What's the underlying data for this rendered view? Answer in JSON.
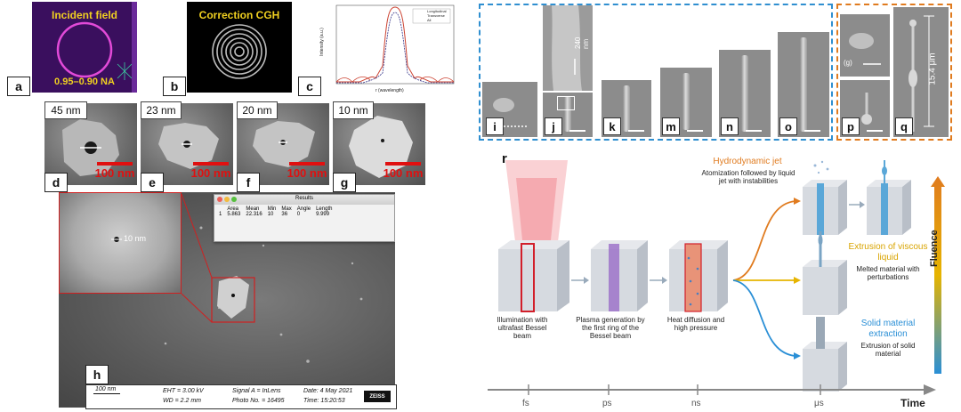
{
  "panel_a": {
    "title": "Incident field",
    "na": "0.95–0.90 NA",
    "label": "a"
  },
  "panel_b": {
    "title": "Correction CGH",
    "label": "b"
  },
  "panel_c": {
    "label": "c",
    "ylabel": "Intensity (a.u.)",
    "xlabel": "r (wavelength)",
    "legend": [
      "Longitudinal",
      "Transverse",
      "All"
    ],
    "xticks": [
      "-2",
      "-1",
      "0",
      "1",
      "2"
    ]
  },
  "sem_row": [
    {
      "size": "45 nm",
      "scale": "100 nm",
      "label": "d"
    },
    {
      "size": "23 nm",
      "scale": "100 nm",
      "label": "e"
    },
    {
      "size": "20 nm",
      "scale": "100 nm",
      "label": "f"
    },
    {
      "size": "10 nm",
      "scale": "100 nm",
      "label": "g"
    }
  ],
  "panel_h": {
    "label": "h",
    "zoom_label": "10 nm",
    "results": {
      "title": "Results",
      "headers": [
        "",
        "Area",
        "Mean",
        "Min",
        "Max",
        "Angle",
        "Length"
      ],
      "row": [
        "1",
        "5.863",
        "22.316",
        "10",
        "36",
        "0",
        "9.999"
      ]
    },
    "footer": {
      "scale": "100 nm",
      "eht": "EHT = 3.00 kV",
      "wd": "WD = 2.2 mm",
      "signal": "Signal A = InLens",
      "photo": "Photo No. = 16495",
      "date": "Date: 4 May 2021",
      "time": "Time: 15:20:53",
      "brand": "ZEISS"
    }
  },
  "pillars": [
    {
      "label": "i"
    },
    {
      "label": "j",
      "zoom": "240 nm"
    },
    {
      "label": "k"
    },
    {
      "label": "m"
    },
    {
      "label": "n"
    },
    {
      "label": "o"
    },
    {
      "label": "p",
      "inset": "(g)"
    },
    {
      "label": "q",
      "height": "15.4 μm"
    }
  ],
  "panel_r": {
    "label": "r",
    "stage1": "Illumination with ultrafast Bessel beam",
    "stage2": "Plasma generation by the first ring of the Bessel beam",
    "stage3": "Heat diffusion and high pressure",
    "out1_title": "Hydrodynamic jet",
    "out1_desc": "Atomization followed by liquid jet with instabilities",
    "out2_title": "Extrusion of viscous liquid",
    "out2_desc": "Melted material with perturbations",
    "out3_title": "Solid material extraction",
    "out3_desc": "Extrusion of solid material",
    "fluence": "Fluence",
    "time_axis": {
      "title": "Time",
      "ticks": [
        "fs",
        "ps",
        "ns",
        "μs"
      ]
    },
    "colors": {
      "jet": "#e07b1f",
      "viscous": "#e6b400",
      "solid": "#2a8fd6"
    }
  }
}
